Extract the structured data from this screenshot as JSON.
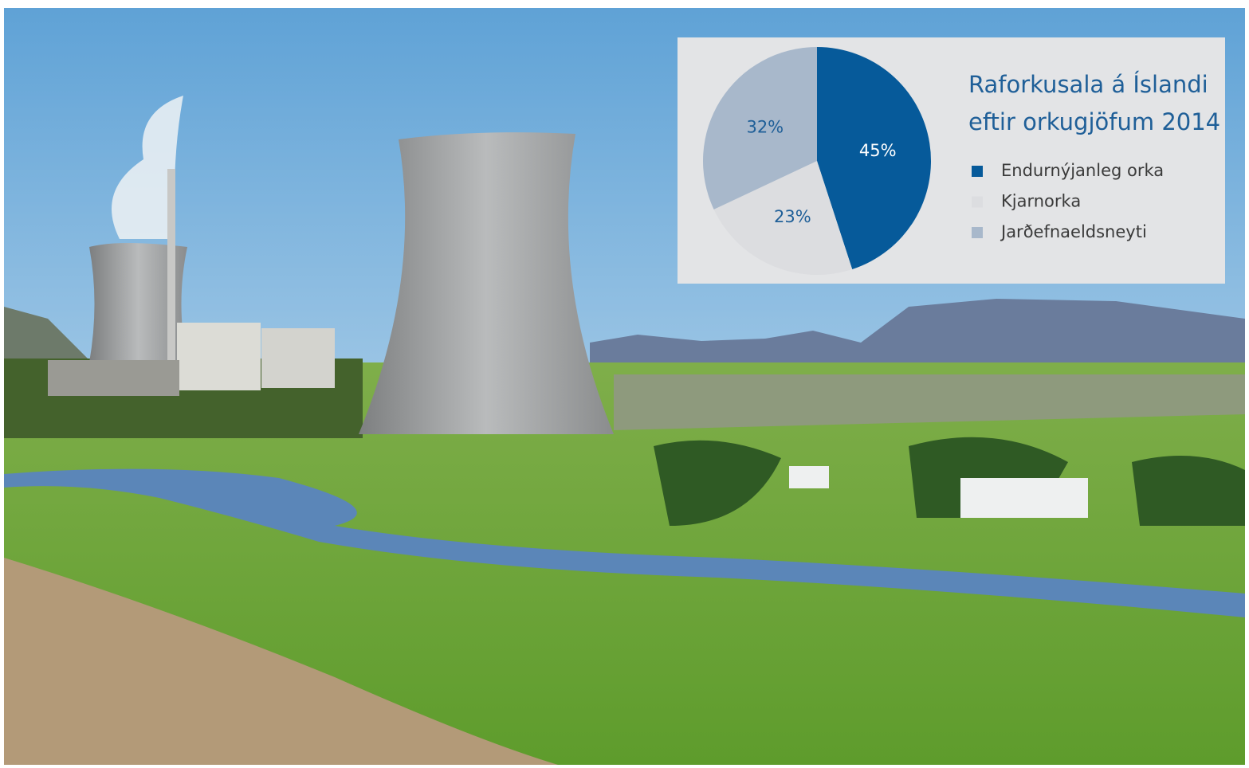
{
  "chart_data": {
    "type": "pie",
    "title": [
      "Raforkusala á Íslandi",
      "eftir orkugjöfum 2014"
    ],
    "categories": [
      "Endurnýjanleg orka",
      "Kjarnorka",
      "Jarðefnaeldsneyti"
    ],
    "values": [
      45,
      23,
      32
    ],
    "value_labels": [
      "45%",
      "23%",
      "32%"
    ],
    "colors": [
      "#065a9a",
      "#dcdde0",
      "#a8b8cb"
    ],
    "start_angle": 0,
    "direction": "clockwise",
    "legend": "right"
  }
}
